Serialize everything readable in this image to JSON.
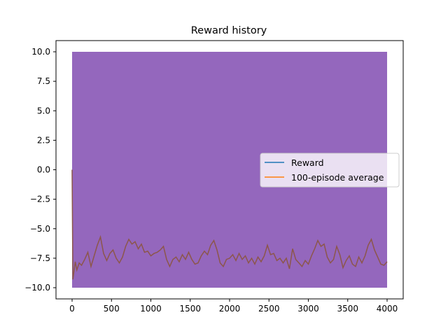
{
  "chart_data": {
    "type": "line",
    "title": "Reward history",
    "xlabel": "",
    "ylabel": "",
    "xlim": [
      0,
      4000
    ],
    "ylim": [
      -10.0,
      10.0
    ],
    "x_ticks": [
      0,
      500,
      1000,
      1500,
      2000,
      2500,
      3000,
      3500,
      4000
    ],
    "x_tick_labels": [
      "0",
      "500",
      "1000",
      "1500",
      "2000",
      "2500",
      "3000",
      "3500",
      "4000"
    ],
    "y_ticks": [
      -10.0,
      -7.5,
      -5.0,
      -2.5,
      0.0,
      2.5,
      5.0,
      7.5,
      10.0
    ],
    "y_tick_labels": [
      "−10.0",
      "−7.5",
      "−5.0",
      "−2.5",
      "0.0",
      "2.5",
      "5.0",
      "7.5",
      "10.0"
    ],
    "grid": false,
    "legend_position": "center-right",
    "series": [
      {
        "name": "Reward",
        "color": "#1f77b4",
        "rendered_color": "#9467bd",
        "description_values": "oscillates every episode between -10 and 10",
        "x": [
          0,
          4000
        ],
        "values": [
          -10,
          10
        ]
      },
      {
        "name": "100-episode average",
        "color": "#ff7f0e",
        "rendered_color": "#8c564b",
        "x": [
          0,
          10,
          20,
          40,
          60,
          90,
          120,
          160,
          200,
          240,
          280,
          320,
          360,
          400,
          440,
          480,
          520,
          560,
          600,
          640,
          680,
          720,
          760,
          800,
          840,
          880,
          920,
          960,
          1000,
          1040,
          1080,
          1120,
          1160,
          1200,
          1240,
          1280,
          1320,
          1360,
          1400,
          1440,
          1480,
          1520,
          1560,
          1600,
          1640,
          1680,
          1720,
          1760,
          1800,
          1840,
          1880,
          1920,
          1960,
          2000,
          2040,
          2080,
          2120,
          2160,
          2200,
          2240,
          2280,
          2320,
          2360,
          2400,
          2440,
          2480,
          2520,
          2560,
          2600,
          2640,
          2680,
          2720,
          2760,
          2800,
          2840,
          2880,
          2920,
          2960,
          3000,
          3040,
          3080,
          3120,
          3160,
          3200,
          3240,
          3280,
          3320,
          3360,
          3400,
          3440,
          3480,
          3520,
          3560,
          3600,
          3640,
          3680,
          3720,
          3760,
          3800,
          3840,
          3880,
          3920,
          3960,
          4000
        ],
        "values": [
          0.0,
          -9.3,
          -8.8,
          -7.8,
          -8.5,
          -7.9,
          -8.1,
          -7.6,
          -7.0,
          -8.2,
          -7.3,
          -6.4,
          -5.7,
          -7.1,
          -7.7,
          -7.1,
          -6.8,
          -7.5,
          -7.9,
          -7.4,
          -6.5,
          -5.9,
          -6.3,
          -6.1,
          -6.7,
          -6.3,
          -7.0,
          -6.9,
          -7.3,
          -7.1,
          -7.0,
          -6.8,
          -6.5,
          -7.6,
          -8.2,
          -7.6,
          -7.4,
          -7.8,
          -7.2,
          -7.6,
          -7.0,
          -7.6,
          -8.0,
          -7.9,
          -7.3,
          -6.9,
          -7.2,
          -6.4,
          -6.0,
          -6.8,
          -7.9,
          -8.2,
          -7.6,
          -7.5,
          -7.2,
          -7.7,
          -7.1,
          -7.6,
          -7.3,
          -7.9,
          -7.5,
          -8.0,
          -7.4,
          -7.8,
          -7.3,
          -6.4,
          -7.2,
          -7.1,
          -7.7,
          -7.5,
          -7.9,
          -7.5,
          -8.4,
          -6.7,
          -7.6,
          -7.9,
          -8.2,
          -7.7,
          -8.0,
          -7.3,
          -6.7,
          -6.0,
          -6.5,
          -6.3,
          -7.4,
          -7.9,
          -7.6,
          -6.5,
          -7.2,
          -8.3,
          -7.7,
          -7.3,
          -8.0,
          -8.2,
          -7.4,
          -7.9,
          -7.3,
          -6.4,
          -5.9,
          -6.8,
          -7.4,
          -8.0,
          -8.1,
          -7.8
        ]
      }
    ]
  },
  "colors": {
    "axis": "#000000",
    "legend_border": "#cccccc"
  }
}
